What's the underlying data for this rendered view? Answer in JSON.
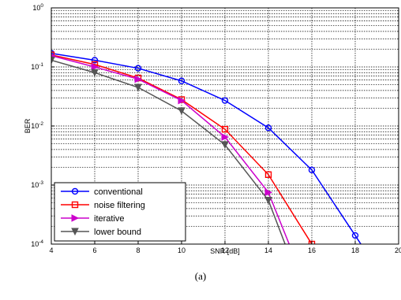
{
  "chart_data": {
    "type": "line",
    "xlabel": "SNR [dB]",
    "ylabel": "BER",
    "yscale": "log",
    "xlim": [
      4,
      20
    ],
    "ylim": [
      0.0001,
      1
    ],
    "xticks": [
      4,
      6,
      8,
      10,
      12,
      14,
      16,
      18,
      20
    ],
    "xtick_labels": [
      "4",
      "6",
      "8",
      "10",
      "12",
      "14",
      "16",
      "18",
      "20"
    ],
    "yticks": [
      0.0001,
      0.001,
      0.01,
      0.1,
      1
    ],
    "ytick_labels": [
      {
        "base": "10",
        "exp": "-4"
      },
      {
        "base": "10",
        "exp": "-3"
      },
      {
        "base": "10",
        "exp": "-2"
      },
      {
        "base": "10",
        "exp": "-1"
      },
      {
        "base": "10",
        "exp": "0"
      }
    ],
    "grid": true,
    "legend_position": "bottom-left",
    "caption": "(a)",
    "series": [
      {
        "name": "conventional",
        "color": "#0000ff",
        "marker": "circle",
        "x": [
          4,
          6,
          8,
          10,
          12,
          14,
          16,
          18,
          19.5
        ],
        "y": [
          0.17,
          0.13,
          0.095,
          0.058,
          0.027,
          0.0093,
          0.0018,
          0.00014,
          2e-05
        ]
      },
      {
        "name": "noise filtering",
        "color": "#ff0000",
        "marker": "square",
        "x": [
          4,
          6,
          8,
          10,
          12,
          14,
          16,
          16.5
        ],
        "y": [
          0.16,
          0.11,
          0.065,
          0.028,
          0.0088,
          0.0015,
          0.0001,
          3e-05
        ]
      },
      {
        "name": "iterative",
        "color": "#cc00cc",
        "marker": "triangle-right",
        "x": [
          4,
          6,
          8,
          10,
          12,
          14,
          15.2
        ],
        "y": [
          0.155,
          0.1,
          0.062,
          0.027,
          0.0065,
          0.00075,
          6e-05
        ]
      },
      {
        "name": "lower bound",
        "color": "#555555",
        "marker": "triangle-down",
        "x": [
          4,
          6,
          8,
          10,
          12,
          14,
          15
        ],
        "y": [
          0.13,
          0.08,
          0.045,
          0.018,
          0.0048,
          0.00055,
          6e-05
        ]
      }
    ]
  }
}
